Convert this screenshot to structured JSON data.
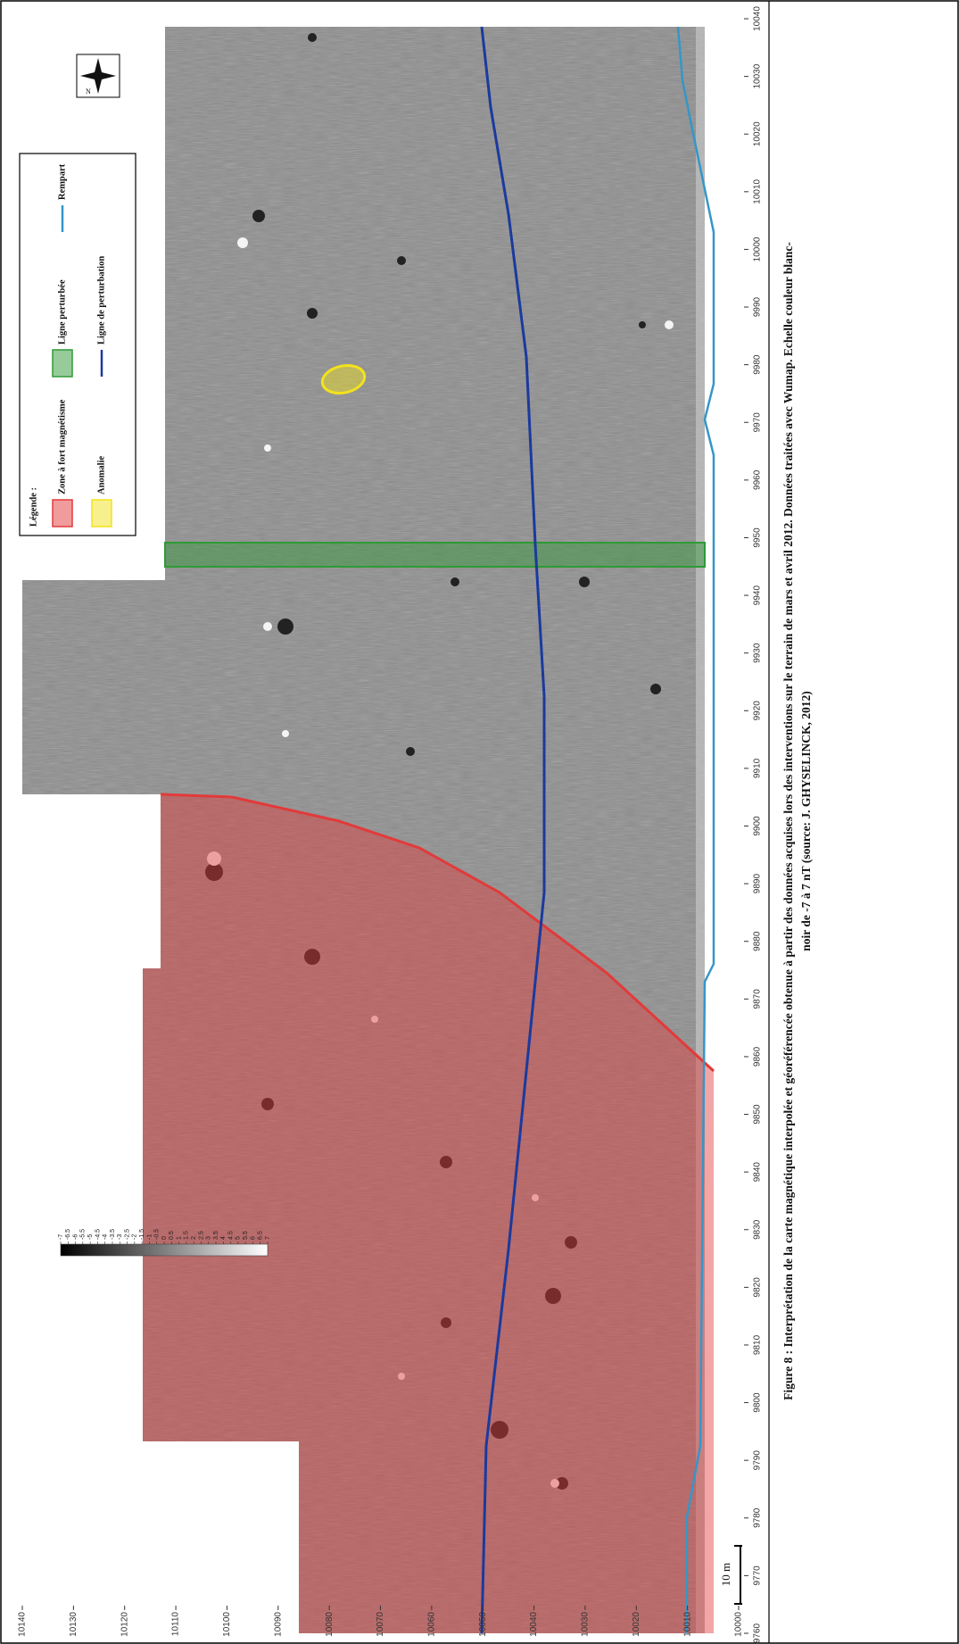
{
  "map": {
    "legend_title": "Légende :",
    "legend": [
      {
        "label": "Zone à fort magnétisme",
        "color": "#e23a3a",
        "style": "area"
      },
      {
        "label": "Anomalie",
        "color": "#f2e21c",
        "style": "area"
      },
      {
        "label": "Ligne perturbée",
        "color": "#2f9a35",
        "style": "area"
      },
      {
        "label": "Ligne de perturbation",
        "color": "#1a3a9e",
        "style": "line"
      },
      {
        "label": "Rempart",
        "color": "#3596c8",
        "style": "line"
      }
    ],
    "north": "N",
    "scale_label": "10 m",
    "xlim": [
      9760,
      10040
    ],
    "xticks": [
      9760,
      9770,
      9780,
      9790,
      9800,
      9810,
      9820,
      9830,
      9840,
      9850,
      9860,
      9870,
      9880,
      9890,
      9900,
      9910,
      9920,
      9930,
      9940,
      9950,
      9960,
      9970,
      9980,
      9990,
      10000,
      10010,
      10020,
      10030,
      10040
    ],
    "ylim": [
      10000,
      10140
    ],
    "yticks": [
      10000,
      10010,
      10020,
      10030,
      10040,
      10050,
      10060,
      10070,
      10080,
      10090,
      10100,
      10110,
      10120,
      10130,
      10140
    ],
    "colorbar": {
      "lim": [
        -7,
        7
      ],
      "ticks": [
        -7,
        -6.5,
        -6,
        -5.5,
        -5,
        -4.5,
        -4,
        -3.5,
        -3,
        -2.5,
        -2,
        -1.5,
        -1,
        -0.5,
        0,
        0.5,
        1,
        1.5,
        2,
        2.5,
        3,
        3.5,
        4,
        4.5,
        5,
        5.5,
        6,
        6.5,
        7
      ]
    }
  },
  "caption": [
    "Figure 8  : Interprétation de la carte magnétique interpolée et géoréférencée obtenue à partir des données acquises lors des interventions sur le terrain de mars et avril 2012. Données traitées avec Wumap. Echelle couleur blanc-",
    "noir de -7 à 7 nT (source: J. GHYSELINCK, 2012)"
  ]
}
